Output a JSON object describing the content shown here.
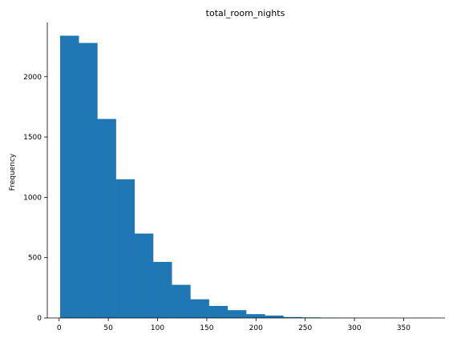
{
  "chart_data": {
    "type": "bar",
    "title": "total_room_nights",
    "xlabel": "",
    "ylabel": "Frequency",
    "xlim": [
      -12,
      392
    ],
    "ylim": [
      0,
      2450
    ],
    "bin_width": 18.9,
    "bin_edges": [
      1.0,
      19.9,
      38.8,
      57.7,
      76.6,
      95.5,
      114.4,
      133.3,
      152.2,
      171.1,
      190.0,
      208.9,
      227.8,
      246.7,
      265.6,
      284.5,
      303.4,
      322.3,
      341.2,
      360.1,
      379.0
    ],
    "values": [
      2340,
      2280,
      1650,
      1150,
      700,
      465,
      275,
      155,
      100,
      65,
      32,
      20,
      8,
      5,
      3,
      2,
      1,
      1,
      0,
      1
    ],
    "x_ticks": [
      0,
      50,
      100,
      150,
      200,
      250,
      300,
      350
    ],
    "y_ticks": [
      0,
      500,
      1000,
      1500,
      2000
    ],
    "bar_color": "#1f77b4",
    "grid": false
  }
}
